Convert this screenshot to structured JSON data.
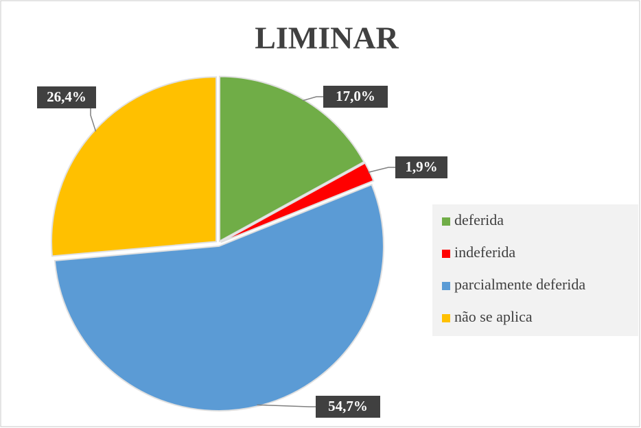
{
  "chart_data": {
    "type": "pie",
    "title": "LIMINAR",
    "categories": [
      "deferida",
      "indeferida",
      "parcialmente deferida",
      "não se aplica"
    ],
    "values": [
      17.0,
      1.9,
      54.7,
      26.4
    ],
    "value_labels": [
      "17,0%",
      "1,9%",
      "54,7%",
      "26,4%"
    ],
    "colors": [
      "#70ad47",
      "#ff0000",
      "#5b9bd5",
      "#ffc000"
    ],
    "legend": "right"
  }
}
